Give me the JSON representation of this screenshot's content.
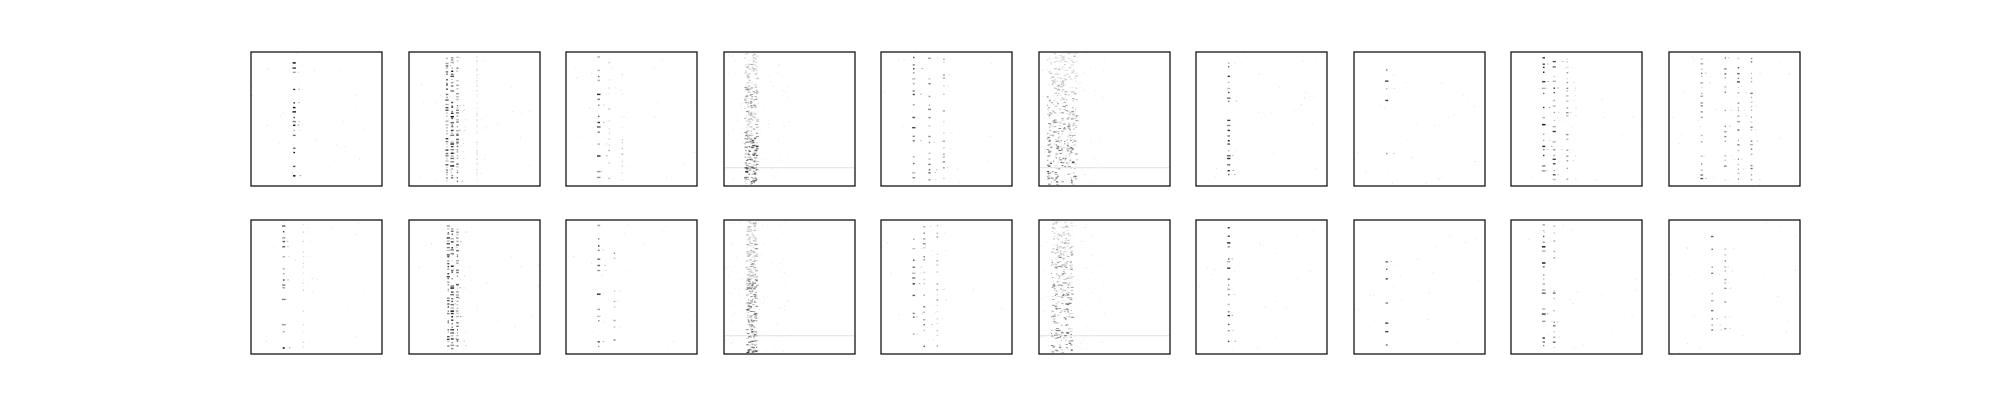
{
  "figure": {
    "layout": "grid",
    "rows": 2,
    "cols": 10,
    "axes_visible": false,
    "background": "#ffffff",
    "frame_color": "#000000",
    "ink_color": "#000000"
  },
  "chart_data": [
    {
      "type": "heatmap",
      "row": 1,
      "col": 1,
      "pattern": "stripes",
      "columns": [
        [
          0.33,
          1.0
        ]
      ],
      "rows": 28,
      "density": 0.6
    },
    {
      "type": "heatmap",
      "row": 1,
      "col": 2,
      "pattern": "stripes",
      "columns": [
        [
          0.29,
          0.8
        ],
        [
          0.33,
          1.0
        ],
        [
          0.37,
          0.7
        ],
        [
          0.52,
          0.2
        ]
      ],
      "rows": 45,
      "density": 0.85
    },
    {
      "type": "heatmap",
      "row": 1,
      "col": 3,
      "pattern": "stripes",
      "columns": [
        [
          0.25,
          0.9
        ],
        [
          0.33,
          0.4
        ],
        [
          0.43,
          0.3
        ]
      ],
      "rows": 22,
      "density": 0.6
    },
    {
      "type": "heatmap",
      "row": 1,
      "col": 4,
      "pattern": "noise-band",
      "columns": [
        [
          0.23,
          1.0
        ]
      ],
      "band_width": 0.06,
      "rows": 60,
      "density": 0.9
    },
    {
      "type": "heatmap",
      "row": 1,
      "col": 5,
      "pattern": "stripes",
      "columns": [
        [
          0.25,
          0.9
        ],
        [
          0.37,
          0.7
        ],
        [
          0.48,
          0.5
        ]
      ],
      "rows": 24,
      "density": 0.7
    },
    {
      "type": "heatmap",
      "row": 1,
      "col": 6,
      "pattern": "noise-band",
      "columns": [
        [
          0.24,
          1.0
        ]
      ],
      "band_width": 0.14,
      "rows": 70,
      "density": 0.9
    },
    {
      "type": "heatmap",
      "row": 1,
      "col": 7,
      "pattern": "stripes",
      "columns": [
        [
          0.25,
          0.9
        ]
      ],
      "rows": 26,
      "density": 0.6
    },
    {
      "type": "heatmap",
      "row": 1,
      "col": 8,
      "pattern": "stripes",
      "columns": [
        [
          0.25,
          0.8
        ]
      ],
      "rows": 12,
      "density": 0.5
    },
    {
      "type": "heatmap",
      "row": 1,
      "col": 9,
      "pattern": "stripes",
      "columns": [
        [
          0.25,
          1.0
        ],
        [
          0.33,
          0.8
        ],
        [
          0.43,
          0.5
        ]
      ],
      "rows": 26,
      "density": 0.7
    },
    {
      "type": "heatmap",
      "row": 1,
      "col": 10,
      "pattern": "stripes",
      "columns": [
        [
          0.25,
          0.7
        ],
        [
          0.43,
          0.6
        ],
        [
          0.53,
          0.7
        ],
        [
          0.63,
          0.6
        ]
      ],
      "rows": 26,
      "density": 0.7
    },
    {
      "type": "heatmap",
      "row": 2,
      "col": 1,
      "pattern": "stripes",
      "columns": [
        [
          0.25,
          1.0
        ],
        [
          0.4,
          0.2
        ]
      ],
      "rows": 24,
      "density": 0.6
    },
    {
      "type": "heatmap",
      "row": 2,
      "col": 2,
      "pattern": "stripes",
      "columns": [
        [
          0.3,
          0.8
        ],
        [
          0.33,
          1.0
        ],
        [
          0.37,
          0.7
        ]
      ],
      "rows": 40,
      "density": 0.8
    },
    {
      "type": "heatmap",
      "row": 2,
      "col": 3,
      "pattern": "stripes",
      "columns": [
        [
          0.25,
          0.9
        ],
        [
          0.37,
          0.5
        ]
      ],
      "rows": 20,
      "density": 0.6
    },
    {
      "type": "heatmap",
      "row": 2,
      "col": 4,
      "pattern": "noise-band",
      "columns": [
        [
          0.23,
          1.0
        ]
      ],
      "band_width": 0.05,
      "rows": 60,
      "density": 0.9
    },
    {
      "type": "heatmap",
      "row": 2,
      "col": 5,
      "pattern": "stripes",
      "columns": [
        [
          0.25,
          0.9
        ],
        [
          0.33,
          0.6
        ],
        [
          0.43,
          0.4
        ]
      ],
      "rows": 22,
      "density": 0.7
    },
    {
      "type": "heatmap",
      "row": 2,
      "col": 6,
      "pattern": "noise-band",
      "columns": [
        [
          0.22,
          1.0
        ]
      ],
      "band_width": 0.1,
      "rows": 60,
      "density": 0.9
    },
    {
      "type": "heatmap",
      "row": 2,
      "col": 7,
      "pattern": "stripes",
      "columns": [
        [
          0.25,
          0.9
        ]
      ],
      "rows": 24,
      "density": 0.6
    },
    {
      "type": "heatmap",
      "row": 2,
      "col": 8,
      "pattern": "stripes",
      "columns": [
        [
          0.25,
          0.8
        ]
      ],
      "rows": 12,
      "density": 0.5
    },
    {
      "type": "heatmap",
      "row": 2,
      "col": 9,
      "pattern": "stripes",
      "columns": [
        [
          0.25,
          1.0
        ],
        [
          0.33,
          0.6
        ]
      ],
      "rows": 24,
      "density": 0.7
    },
    {
      "type": "heatmap",
      "row": 2,
      "col": 10,
      "pattern": "stripes",
      "columns": [
        [
          0.33,
          0.7
        ],
        [
          0.43,
          0.5
        ]
      ],
      "rows": 22,
      "density": 0.5
    }
  ]
}
